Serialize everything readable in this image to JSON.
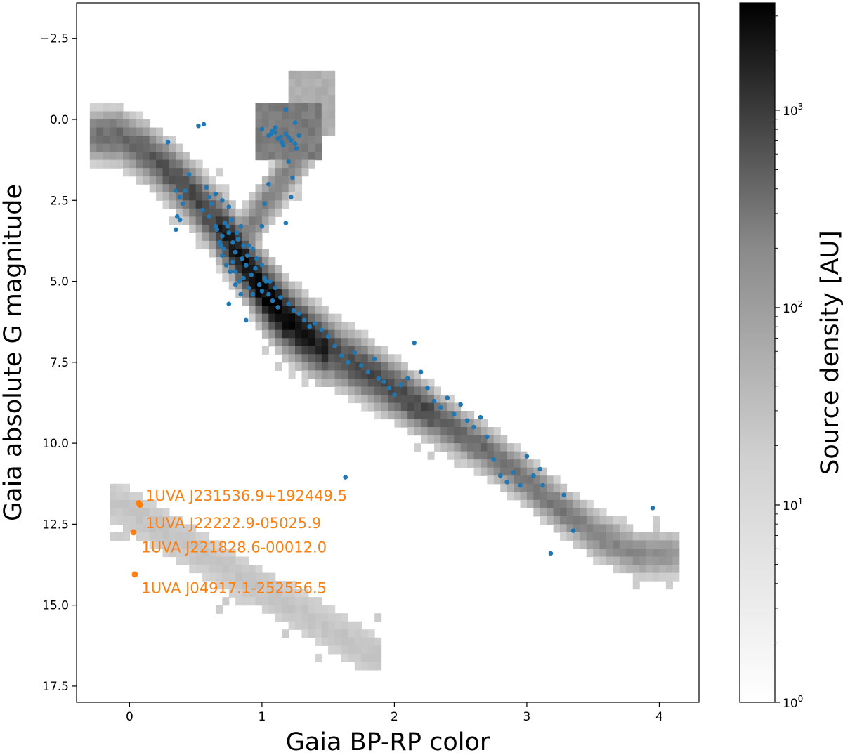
{
  "chart_data": {
    "type": "scatter",
    "title": "",
    "xlabel": "Gaia BP-RP color",
    "ylabel": "Gaia absolute G magnitude",
    "xlim": [
      -0.4,
      4.3
    ],
    "ylim": [
      18.0,
      -3.6
    ],
    "y_inverted": true,
    "x_ticks": [
      "0",
      "1",
      "2",
      "3",
      "4"
    ],
    "y_ticks": [
      "−2.5",
      "0.0",
      "2.5",
      "5.0",
      "7.5",
      "10.0",
      "12.5",
      "15.0",
      "17.5"
    ],
    "grid": false,
    "background": {
      "type": "heatmap",
      "colormap": "grey",
      "description_ridge": [
        {
          "x": -0.1,
          "y": 0.4
        },
        {
          "x": 0.1,
          "y": 0.9
        },
        {
          "x": 0.3,
          "y": 1.6
        },
        {
          "x": 0.5,
          "y": 2.4
        },
        {
          "x": 0.65,
          "y": 3.2
        },
        {
          "x": 0.8,
          "y": 4.0
        },
        {
          "x": 0.95,
          "y": 5.0
        },
        {
          "x": 1.15,
          "y": 6.0
        },
        {
          "x": 1.4,
          "y": 6.8
        },
        {
          "x": 1.7,
          "y": 7.5
        },
        {
          "x": 2.0,
          "y": 8.3
        },
        {
          "x": 2.3,
          "y": 9.1
        },
        {
          "x": 2.6,
          "y": 9.9
        },
        {
          "x": 2.9,
          "y": 10.8
        },
        {
          "x": 3.2,
          "y": 11.8
        },
        {
          "x": 3.5,
          "y": 12.7
        },
        {
          "x": 3.8,
          "y": 13.3
        }
      ]
    },
    "colorbar": {
      "label": "Source density [AU]",
      "scale": "log",
      "range": [
        1,
        3500
      ],
      "tick_labels": [
        {
          "base": "10",
          "exp": "0",
          "value": 1
        },
        {
          "base": "10",
          "exp": "1",
          "value": 10
        },
        {
          "base": "10",
          "exp": "2",
          "value": 100
        },
        {
          "base": "10",
          "exp": "3",
          "value": 1000
        }
      ]
    },
    "series": [
      {
        "color": "#1f77b4",
        "points": [
          [
            0.29,
            0.7
          ],
          [
            0.52,
            0.2
          ],
          [
            0.56,
            0.15
          ],
          [
            0.35,
            2.2
          ],
          [
            0.38,
            2.4
          ],
          [
            0.42,
            2.2
          ],
          [
            0.45,
            1.7
          ],
          [
            0.4,
            2.6
          ],
          [
            0.36,
            3.0
          ],
          [
            0.38,
            3.1
          ],
          [
            0.35,
            3.4
          ],
          [
            0.58,
            2.1
          ],
          [
            0.6,
            2.4
          ],
          [
            0.62,
            2.6
          ],
          [
            0.55,
            2.8
          ],
          [
            0.65,
            2.3
          ],
          [
            0.7,
            2.5
          ],
          [
            0.75,
            2.7
          ],
          [
            0.6,
            3.0
          ],
          [
            0.65,
            3.3
          ],
          [
            0.7,
            3.6
          ],
          [
            0.68,
            3.8
          ],
          [
            0.72,
            3.2
          ],
          [
            0.75,
            3.5
          ],
          [
            0.78,
            3.8
          ],
          [
            0.8,
            4.1
          ],
          [
            0.82,
            3.7
          ],
          [
            0.85,
            4.3
          ],
          [
            0.88,
            4.5
          ],
          [
            0.9,
            3.9
          ],
          [
            0.92,
            4.8
          ],
          [
            0.95,
            4.6
          ],
          [
            0.98,
            5.1
          ],
          [
            1.0,
            5.3
          ],
          [
            1.03,
            5.0
          ],
          [
            1.05,
            5.4
          ],
          [
            1.08,
            5.6
          ],
          [
            1.1,
            5.2
          ],
          [
            1.12,
            5.8
          ],
          [
            0.78,
            4.4
          ],
          [
            0.8,
            4.7
          ],
          [
            0.83,
            5.0
          ],
          [
            0.86,
            4.9
          ],
          [
            0.9,
            5.2
          ],
          [
            0.93,
            5.4
          ],
          [
            0.7,
            4.2
          ],
          [
            0.73,
            4.5
          ],
          [
            0.76,
            4.7
          ],
          [
            0.8,
            5.1
          ],
          [
            0.84,
            5.4
          ],
          [
            0.75,
            5.7
          ],
          [
            0.88,
            6.2
          ],
          [
            0.66,
            3.4
          ],
          [
            0.69,
            3.9
          ],
          [
            0.71,
            4.0
          ],
          [
            0.74,
            3.3
          ],
          [
            0.77,
            3.1
          ],
          [
            0.81,
            3.5
          ],
          [
            0.84,
            3.3
          ],
          [
            0.86,
            3.9
          ],
          [
            0.89,
            4.2
          ],
          [
            0.93,
            4.0
          ],
          [
            0.96,
            4.3
          ],
          [
            1.0,
            4.5
          ],
          [
            1.02,
            4.9
          ],
          [
            1.06,
            5.0
          ],
          [
            1.14,
            5.5
          ],
          [
            1.2,
            5.7
          ],
          [
            1.24,
            5.9
          ],
          [
            1.28,
            6.0
          ],
          [
            1.32,
            6.2
          ],
          [
            1.36,
            6.4
          ],
          [
            1.4,
            6.3
          ],
          [
            1.45,
            6.5
          ],
          [
            1.5,
            6.7
          ],
          [
            1.55,
            7.0
          ],
          [
            1.6,
            7.3
          ],
          [
            1.65,
            7.5
          ],
          [
            1.7,
            7.2
          ],
          [
            1.75,
            7.6
          ],
          [
            1.8,
            7.8
          ],
          [
            1.85,
            7.4
          ],
          [
            1.88,
            8.0
          ],
          [
            1.92,
            8.1
          ],
          [
            1.96,
            8.3
          ],
          [
            2.0,
            8.5
          ],
          [
            2.05,
            8.2
          ],
          [
            2.1,
            8.0
          ],
          [
            2.15,
            6.9
          ],
          [
            2.2,
            7.8
          ],
          [
            2.25,
            8.3
          ],
          [
            2.3,
            8.7
          ],
          [
            2.35,
            8.9
          ],
          [
            2.4,
            8.6
          ],
          [
            2.45,
            9.1
          ],
          [
            2.5,
            8.8
          ],
          [
            2.55,
            9.3
          ],
          [
            2.6,
            9.5
          ],
          [
            2.65,
            9.2
          ],
          [
            2.7,
            9.8
          ],
          [
            2.75,
            10.5
          ],
          [
            2.8,
            11.0
          ],
          [
            2.85,
            11.2
          ],
          [
            2.9,
            10.9
          ],
          [
            2.95,
            11.3
          ],
          [
            3.0,
            10.4
          ],
          [
            3.05,
            11.0
          ],
          [
            3.1,
            10.8
          ],
          [
            3.12,
            11.3
          ],
          [
            3.28,
            11.6
          ],
          [
            3.35,
            12.7
          ],
          [
            3.18,
            13.4
          ],
          [
            3.95,
            12.0
          ],
          [
            1.63,
            11.05
          ],
          [
            1.0,
            0.3
          ],
          [
            1.05,
            0.5
          ],
          [
            1.1,
            0.4
          ],
          [
            1.12,
            0.6
          ],
          [
            1.15,
            0.7
          ],
          [
            1.18,
            0.45
          ],
          [
            1.2,
            0.55
          ],
          [
            1.22,
            0.65
          ],
          [
            1.25,
            0.75
          ],
          [
            1.28,
            0.5
          ],
          [
            1.16,
            0.8
          ],
          [
            1.2,
            1.3
          ],
          [
            1.23,
            1.8
          ],
          [
            1.25,
            0.1
          ],
          [
            1.18,
            -0.3
          ],
          [
            1.05,
            2.0
          ],
          [
            1.02,
            2.6
          ],
          [
            1.0,
            3.3
          ],
          [
            1.22,
            2.4
          ],
          [
            1.18,
            3.2
          ],
          [
            1.26,
            0.9
          ],
          [
            1.14,
            0.55
          ],
          [
            1.08,
            0.35
          ],
          [
            1.1,
            0.25
          ],
          [
            1.07,
            0.45
          ]
        ]
      },
      {
        "color": "#ff7f0e",
        "points": [
          [
            0.07,
            11.85
          ],
          [
            0.08,
            11.9
          ],
          [
            0.03,
            12.75
          ],
          [
            0.04,
            14.05
          ]
        ]
      }
    ],
    "annotations": [
      {
        "text": "1UVA J231536.9+192449.5",
        "x": 0.12,
        "y": 11.6
      },
      {
        "text": "1UVA J22222.9-05025.9",
        "x": 0.12,
        "y": 12.45
      },
      {
        "text": "1UVA J221828.6-00012.0",
        "x": 0.09,
        "y": 13.2
      },
      {
        "text": "1UVA J04917.1-252556.5",
        "x": 0.09,
        "y": 14.45
      }
    ]
  }
}
